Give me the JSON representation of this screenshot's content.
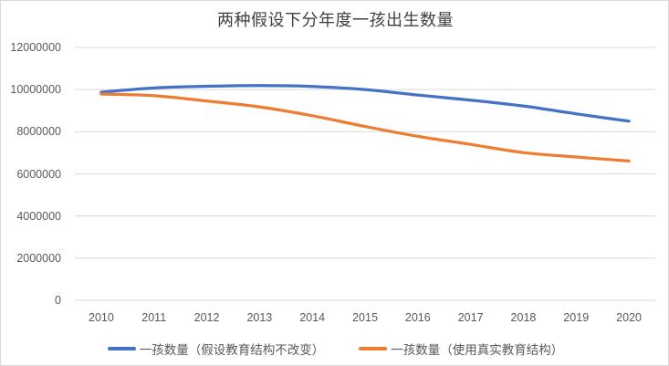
{
  "title": "两种假设下分年度一孩出生数量",
  "chart_data": {
    "type": "line",
    "categories": [
      "2010",
      "2011",
      "2012",
      "2013",
      "2014",
      "2015",
      "2016",
      "2017",
      "2018",
      "2019",
      "2020"
    ],
    "series": [
      {
        "name": "一孩数量（假设教育结构不改变）",
        "color": "#4472C4",
        "values": [
          9880000,
          10080000,
          10160000,
          10190000,
          10150000,
          10000000,
          9740000,
          9500000,
          9220000,
          8850000,
          8500000
        ]
      },
      {
        "name": "一孩数量（使用真实教育结构）",
        "color": "#ED7D31",
        "values": [
          9790000,
          9710000,
          9460000,
          9180000,
          8760000,
          8250000,
          7780000,
          7400000,
          7010000,
          6800000,
          6610000
        ]
      }
    ],
    "title": "两种假设下分年度一孩出生数量",
    "xlabel": "",
    "ylabel": "",
    "ylim": [
      0,
      12000000
    ],
    "yticks": [
      0,
      2000000,
      4000000,
      6000000,
      8000000,
      10000000,
      12000000
    ],
    "grid": true,
    "smoothed": true,
    "legend_position": "bottom"
  },
  "colors": {
    "gridline": "#d9d9d9",
    "axis_line": "#d9d9d9",
    "tick_text": "#595959",
    "title_text": "#404040",
    "border": "#d9d9d9",
    "background": "#ffffff"
  }
}
